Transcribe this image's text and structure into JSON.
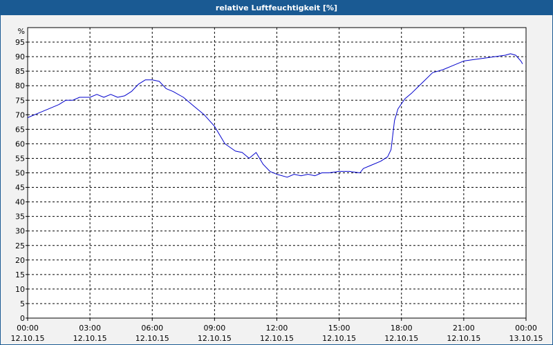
{
  "window": {
    "title": "relative Luftfeuchtigkeit [%]"
  },
  "chart_data": {
    "type": "line",
    "title": "relative Luftfeuchtigkeit [%]",
    "ylabel": "%",
    "xlabel": "",
    "ylim": [
      0,
      100
    ],
    "y_ticks": [
      0,
      5,
      10,
      15,
      20,
      25,
      30,
      35,
      40,
      45,
      50,
      55,
      60,
      65,
      70,
      75,
      80,
      85,
      90,
      95
    ],
    "x_ticks": [
      {
        "time": "00:00",
        "date": "12.10.15"
      },
      {
        "time": "03:00",
        "date": "12.10.15"
      },
      {
        "time": "06:00",
        "date": "12.10.15"
      },
      {
        "time": "09:00",
        "date": "12.10.15"
      },
      {
        "time": "12:00",
        "date": "12.10.15"
      },
      {
        "time": "15:00",
        "date": "12.10.15"
      },
      {
        "time": "18:00",
        "date": "12.10.15"
      },
      {
        "time": "21:00",
        "date": "12.10.15"
      },
      {
        "time": "00:00",
        "date": "13.10.15"
      }
    ],
    "xlim": [
      "12.10.15 00:00",
      "13.10.15 00:00"
    ],
    "grid": true,
    "line_color": "#0000cc",
    "series": [
      {
        "x": [
          "12.10.15 00:00",
          "12.10.15 00:30",
          "12.10.15 01:00",
          "12.10.15 01:30",
          "12.10.15 01:50",
          "12.10.15 02:10",
          "12.10.15 02:30",
          "12.10.15 03:00",
          "12.10.15 03:20",
          "12.10.15 03:40",
          "12.10.15 04:00",
          "12.10.15 04:20",
          "12.10.15 04:40",
          "12.10.15 05:00",
          "12.10.15 05:20",
          "12.10.15 05:40",
          "12.10.15 06:00",
          "12.10.15 06:20",
          "12.10.15 06:40",
          "12.10.15 07:00",
          "12.10.15 07:30",
          "12.10.15 08:00",
          "12.10.15 08:30",
          "12.10.15 09:00",
          "12.10.15 09:15",
          "12.10.15 09:30",
          "12.10.15 10:00",
          "12.10.15 10:20",
          "12.10.15 10:40",
          "12.10.15 11:00",
          "12.10.15 11:20",
          "12.10.15 11:40",
          "12.10.15 12:00",
          "12.10.15 12:30",
          "12.10.15 12:50",
          "12.10.15 13:10",
          "12.10.15 13:30",
          "12.10.15 13:50",
          "12.10.15 14:10",
          "12.10.15 14:30",
          "12.10.15 15:00",
          "12.10.15 15:30",
          "12.10.15 16:00",
          "12.10.15 16:10",
          "12.10.15 16:30",
          "12.10.15 17:00",
          "12.10.15 17:20",
          "12.10.15 17:30",
          "12.10.15 17:40",
          "12.10.15 17:50",
          "12.10.15 18:10",
          "12.10.15 18:30",
          "12.10.15 19:00",
          "12.10.15 19:30",
          "12.10.15 20:00",
          "12.10.15 20:30",
          "12.10.15 21:00",
          "12.10.15 21:30",
          "12.10.15 22:00",
          "12.10.15 22:30",
          "12.10.15 23:00",
          "12.10.15 23:15",
          "12.10.15 23:30",
          "12.10.15 23:45",
          "12.10.15 23:50"
        ],
        "y": [
          69,
          70.5,
          72,
          73.5,
          75,
          75,
          76,
          76,
          77,
          76,
          77,
          76,
          76.5,
          78,
          80.5,
          82,
          82,
          81.5,
          79,
          78,
          76,
          73,
          70,
          66,
          63,
          60,
          57.5,
          57,
          55,
          57,
          53,
          50.5,
          49.5,
          48.5,
          49.5,
          49,
          49.5,
          49,
          50,
          50,
          50.5,
          50.5,
          50,
          51.5,
          52.5,
          54,
          55.5,
          58,
          68,
          72,
          75.5,
          77.5,
          81,
          84.5,
          85.5,
          87,
          88.5,
          89,
          89.5,
          90,
          90.5,
          91,
          90.5,
          88.5,
          87.5
        ]
      }
    ]
  }
}
